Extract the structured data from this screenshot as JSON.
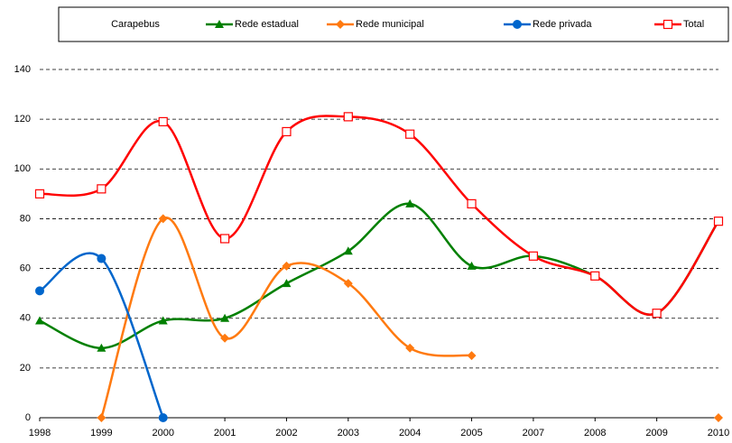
{
  "chart_data": {
    "type": "line",
    "title": "Carapebus",
    "categories": [
      "1998",
      "1999",
      "2000",
      "2001",
      "2002",
      "2003",
      "2004",
      "2005",
      "2007",
      "2008",
      "2009",
      "2010"
    ],
    "series": [
      {
        "name": "Rede estadual",
        "color": "#008000",
        "marker": "triangle",
        "values": [
          39,
          28,
          39,
          40,
          54,
          67,
          86,
          61,
          65,
          57,
          42,
          79
        ]
      },
      {
        "name": "Rede municipal",
        "color": "#ff7a10",
        "marker": "diamond",
        "values": [
          null,
          0,
          80,
          32,
          61,
          54,
          28,
          25,
          null,
          null,
          null,
          0
        ]
      },
      {
        "name": "Rede privada",
        "color": "#0066cc",
        "marker": "circle",
        "values": [
          51,
          64,
          0,
          null,
          null,
          null,
          null,
          null,
          null,
          null,
          null,
          null
        ]
      },
      {
        "name": "Total",
        "color": "#ff0000",
        "marker": "square",
        "values": [
          90,
          92,
          119,
          72,
          115,
          121,
          114,
          86,
          65,
          57,
          42,
          79
        ]
      }
    ],
    "ylim": [
      0,
      140
    ],
    "yticks": [
      0,
      20,
      40,
      60,
      80,
      100,
      120,
      140
    ],
    "grid": true,
    "smooth": true,
    "legend": "top"
  }
}
